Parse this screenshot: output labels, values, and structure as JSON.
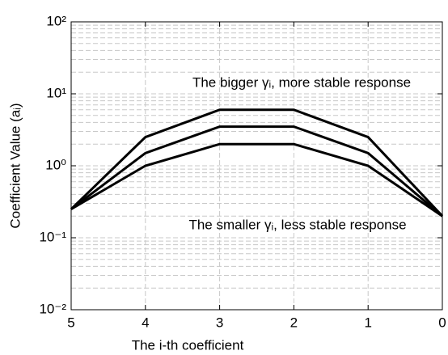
{
  "chart_data": {
    "type": "line",
    "xlabel": "The i-th coefficient",
    "ylabel": "Coefficient Value (aᵢ)",
    "annotations": [
      "The bigger γᵢ, more stable response",
      "The smaller γᵢ, less stable response"
    ],
    "x": [
      5,
      4,
      3,
      2,
      1,
      0
    ],
    "series": [
      {
        "color": "#000000",
        "values": [
          0.25,
          2.5,
          6,
          6,
          2.5,
          0.2
        ]
      },
      {
        "color": "#000000",
        "values": [
          0.25,
          1.5,
          3.5,
          3.5,
          1.5,
          0.2
        ]
      },
      {
        "color": "#000000",
        "values": [
          0.25,
          1.0,
          2.0,
          2.0,
          1.0,
          0.2
        ]
      }
    ],
    "xlim": [
      5,
      0
    ],
    "xticks": [
      5,
      4,
      3,
      2,
      1,
      0
    ],
    "ylim": [
      0.01,
      100
    ],
    "log_y": true,
    "yticks": [
      {
        "value": 0.01,
        "label": "10⁻²"
      },
      {
        "value": 0.1,
        "label": "10⁻¹"
      },
      {
        "value": 1,
        "label": "10⁰"
      },
      {
        "value": 10,
        "label": "10¹"
      },
      {
        "value": 100,
        "label": "10²"
      }
    ],
    "grid": true,
    "minor_grid": true
  }
}
